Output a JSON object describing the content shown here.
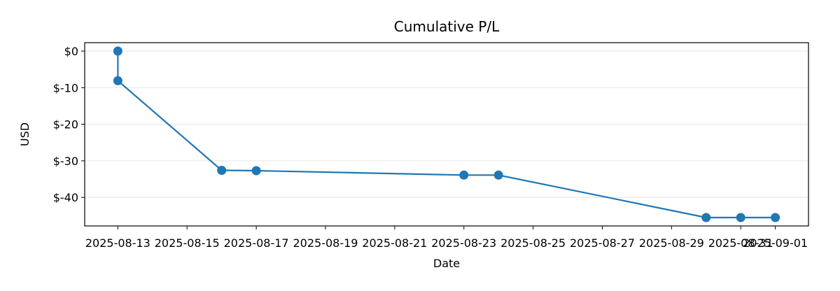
{
  "chart_data": {
    "type": "line",
    "title": "Cumulative P/L",
    "xlabel": "Date",
    "ylabel": "USD",
    "grid": "y",
    "series": [
      {
        "color": "#1f77b4",
        "marker": "circle",
        "points": [
          {
            "x": "2025-08-13",
            "y": 0
          },
          {
            "x": "2025-08-13",
            "y": -8.1
          },
          {
            "x": "2025-08-16",
            "y": -32.6
          },
          {
            "x": "2025-08-17",
            "y": -32.7
          },
          {
            "x": "2025-08-23",
            "y": -33.9
          },
          {
            "x": "2025-08-24",
            "y": -33.9
          },
          {
            "x": "2025-08-30",
            "y": -45.5
          },
          {
            "x": "2025-08-31",
            "y": -45.5
          },
          {
            "x": "2025-09-01",
            "y": -45.5
          }
        ]
      }
    ],
    "xlim": [
      "2025-08-12T01:00",
      "2025-09-01T23:00"
    ],
    "ylim": [
      -47.8,
      2.3
    ],
    "x_ticks": [
      "2025-08-13",
      "2025-08-15",
      "2025-08-17",
      "2025-08-19",
      "2025-08-21",
      "2025-08-23",
      "2025-08-25",
      "2025-08-27",
      "2025-08-29",
      "2025-08-31",
      "2025-09-01"
    ],
    "y_ticks": [
      {
        "value": 0,
        "label": "$0"
      },
      {
        "value": -10,
        "label": "$-10"
      },
      {
        "value": -20,
        "label": "$-20"
      },
      {
        "value": -30,
        "label": "$-30"
      },
      {
        "value": -40,
        "label": "$-40"
      }
    ]
  }
}
